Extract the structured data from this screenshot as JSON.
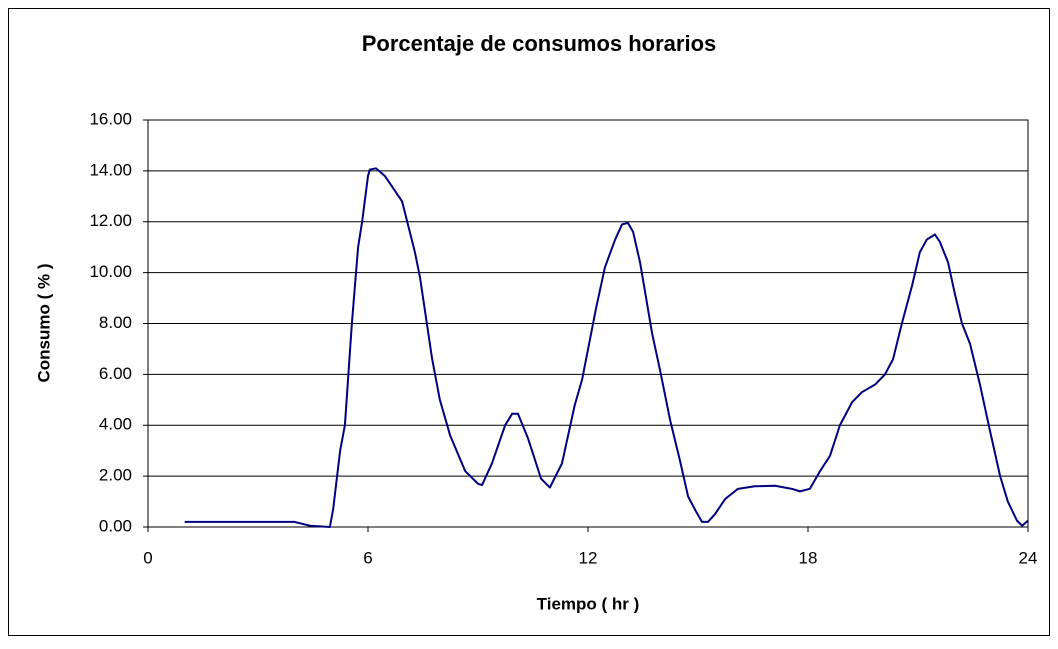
{
  "chart_data": {
    "type": "line",
    "title": "Porcentaje de consumos horarios",
    "x_label": "Tiempo ( hr )",
    "y_label": "Consumo ( % )",
    "xlim": [
      0,
      24
    ],
    "xticks": [
      0,
      6,
      12,
      18,
      24
    ],
    "ylim": [
      0,
      16
    ],
    "yticks": [
      {
        "value": 0,
        "label": "0.00"
      },
      {
        "value": 2,
        "label": "2.00"
      },
      {
        "value": 4,
        "label": "4.00"
      },
      {
        "value": 6,
        "label": "6.00"
      },
      {
        "value": 8,
        "label": "8.00"
      },
      {
        "value": 10,
        "label": "10.00"
      },
      {
        "value": 12,
        "label": "12.00"
      },
      {
        "value": 14,
        "label": "14.00"
      },
      {
        "value": 16,
        "label": "16.00"
      }
    ],
    "grid": true,
    "series": [
      {
        "color": "#000080",
        "x": [
          1,
          4,
          4.42,
          4.96,
          5.05,
          5.24,
          5.37,
          5.56,
          5.73,
          5.84,
          6.0,
          6.05,
          6.22,
          6.46,
          6.65,
          6.93,
          7.28,
          7.42,
          7.75,
          7.96,
          8.24,
          8.65,
          9.0,
          9.11,
          9.38,
          9.74,
          9.93,
          10.09,
          10.36,
          10.72,
          10.96,
          11.29,
          11.64,
          11.84,
          12.22,
          12.46,
          12.74,
          12.93,
          13.09,
          13.23,
          13.42,
          13.75,
          13.96,
          14.24,
          14.51,
          14.73,
          14.95,
          15.11,
          15.27,
          15.46,
          15.74,
          16.09,
          16.55,
          17.1,
          17.56,
          17.78,
          18.05,
          18.33,
          18.6,
          18.87,
          19.2,
          19.47,
          19.83,
          20.1,
          20.32,
          20.56,
          20.84,
          21.05,
          21.24,
          21.46,
          21.6,
          21.82,
          22.0,
          22.2,
          22.42,
          22.69,
          22.96,
          23.24,
          23.45,
          23.7,
          23.84,
          24
        ],
        "values": [
          0.2,
          0.2,
          0.05,
          0,
          0.7,
          3,
          4,
          8,
          11,
          12,
          13.8,
          14.05,
          14.1,
          13.8,
          13.4,
          12.8,
          10.8,
          9.8,
          6.6,
          5.0,
          3.6,
          2.2,
          1.7,
          1.65,
          2.5,
          4.0,
          4.45,
          4.45,
          3.5,
          1.9,
          1.55,
          2.5,
          4.8,
          5.8,
          8.6,
          10.2,
          11.3,
          11.9,
          11.95,
          11.6,
          10.4,
          7.6,
          6.2,
          4.2,
          2.6,
          1.2,
          0.6,
          0.2,
          0.2,
          0.5,
          1.1,
          1.5,
          1.6,
          1.62,
          1.5,
          1.4,
          1.5,
          2.2,
          2.8,
          4.0,
          4.9,
          5.3,
          5.6,
          6.0,
          6.6,
          8.0,
          9.5,
          10.8,
          11.3,
          11.5,
          11.2,
          10.4,
          9.2,
          8.0,
          7.2,
          5.6,
          3.8,
          2.0,
          1.0,
          0.25,
          0.05,
          0.25
        ]
      }
    ]
  }
}
